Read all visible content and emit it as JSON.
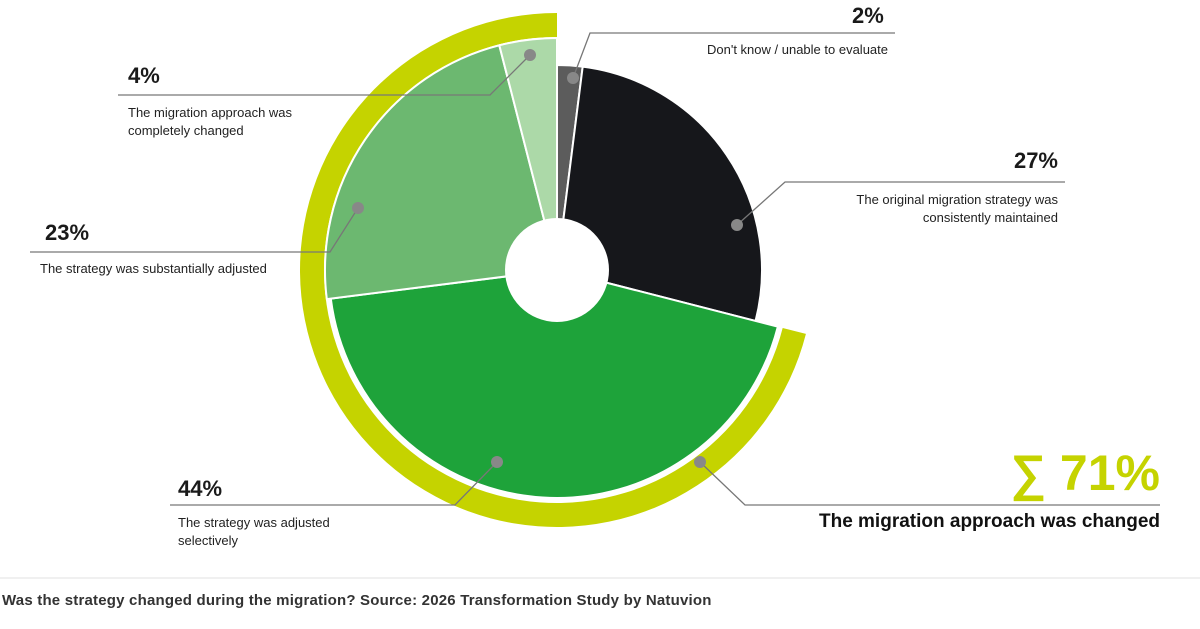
{
  "chart_data": {
    "type": "pie",
    "categories": [
      "Don't know / unable to evaluate",
      "The original migration strategy was consistently maintained",
      "The strategy was adjusted selectively",
      "The strategy was substantially adjusted",
      "The migration approach was completely changed"
    ],
    "values": [
      2,
      27,
      44,
      23,
      4
    ],
    "value_labels": [
      "2%",
      "27%",
      "44%",
      "23%",
      "4%"
    ],
    "colors": [
      "#5c5c5c",
      "#16171b",
      "#1ea33a",
      "#6cb870",
      "#acd9a8"
    ],
    "total": {
      "value": 71,
      "label": "∑ 71%",
      "text": "The migration approach was changed",
      "color": "#c5d300"
    },
    "caption": "Was the strategy changed during the migration? Source: 2026 Transformation Study by Natuvion"
  }
}
